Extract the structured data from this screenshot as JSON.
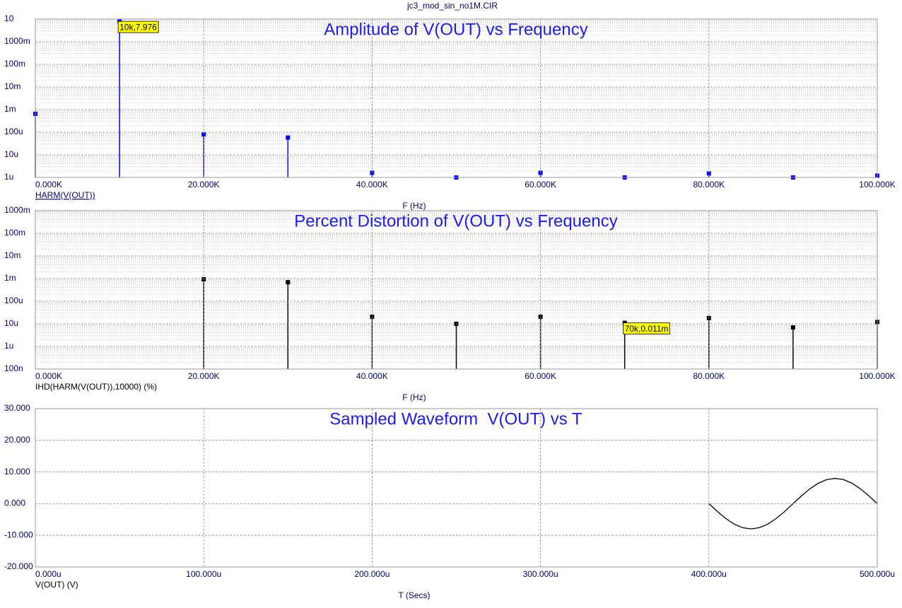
{
  "header": {
    "title": "jc3_mod_sin_no1M.CIR"
  },
  "chart_data": [
    {
      "type": "stem",
      "title": "Amplitude of V(OUT) vs Frequency",
      "x_label": "F (Hz)",
      "log_y": true,
      "grid": true,
      "xlim": [
        0,
        100000
      ],
      "xticks": [
        {
          "value": 0,
          "label": "0.000K"
        },
        {
          "value": 20000,
          "label": "20.000K"
        },
        {
          "value": 40000,
          "label": "40.000K"
        },
        {
          "value": 60000,
          "label": "60.000K"
        },
        {
          "value": 80000,
          "label": "80.000K"
        },
        {
          "value": 100000,
          "label": "100.000K"
        }
      ],
      "ylim": [
        1e-06,
        10
      ],
      "yticks": [
        10,
        {
          "value": 1,
          "label": "1000m"
        },
        {
          "value": 0.1,
          "label": "100m"
        },
        {
          "value": 0.01,
          "label": "10m"
        },
        {
          "value": 0.001,
          "label": "1m"
        },
        {
          "value": 0.0001,
          "label": "100u"
        },
        {
          "value": 1e-05,
          "label": "10u"
        },
        {
          "value": 1e-06,
          "label": "1u"
        }
      ],
      "annotation": "10k,7.976",
      "series": [
        {
          "name": "HARM(V(OUT))",
          "color": "#0000ff",
          "x": [
            0,
            10000,
            20000,
            30000,
            40000,
            50000,
            60000,
            70000,
            80000,
            90000,
            100000
          ],
          "values": [
            0.00065,
            7.976,
            8e-05,
            5.8e-05,
            1.6e-06,
            1e-06,
            1.6e-06,
            1e-06,
            1.5e-06,
            1e-06,
            1.2e-06
          ]
        }
      ]
    },
    {
      "type": "stem",
      "title": "Percent Distortion of V(OUT) vs Frequency",
      "x_label": "F (Hz)",
      "log_y": true,
      "grid": true,
      "xlim": [
        0,
        100000
      ],
      "xticks": [
        {
          "value": 0,
          "label": "0.000K"
        },
        {
          "value": 20000,
          "label": "20.000K"
        },
        {
          "value": 40000,
          "label": "40.000K"
        },
        {
          "value": 60000,
          "label": "60.000K"
        },
        {
          "value": 80000,
          "label": "80.000K"
        },
        {
          "value": 100000,
          "label": "100.000K"
        }
      ],
      "ylim": [
        1e-07,
        1
      ],
      "yticks": [
        {
          "value": 1,
          "label": "1000m"
        },
        {
          "value": 0.1,
          "label": "100m"
        },
        {
          "value": 0.01,
          "label": "10m"
        },
        {
          "value": 0.001,
          "label": "1m"
        },
        {
          "value": 0.0001,
          "label": "100u"
        },
        {
          "value": 1e-05,
          "label": "10u"
        },
        {
          "value": 1e-06,
          "label": "1u"
        },
        {
          "value": 1e-07,
          "label": "100n"
        }
      ],
      "annotation": "70k,0.011m",
      "series": [
        {
          "name": "IHD(HARM(V(OUT)),10000) (%)",
          "color": "#000000",
          "x": [
            20000,
            30000,
            40000,
            50000,
            60000,
            70000,
            80000,
            90000,
            100000
          ],
          "values": [
            0.00093,
            0.00069,
            2.05e-05,
            1e-05,
            2.05e-05,
            1.1e-05,
            1.8e-05,
            6.9e-06,
            1.2e-05
          ]
        }
      ]
    },
    {
      "type": "line",
      "title": "Sampled Waveform  V(OUT) vs T",
      "x_label": "T (Secs)",
      "log_y": false,
      "grid": true,
      "xlim": [
        0,
        0.0005
      ],
      "xticks": [
        {
          "value": 0,
          "label": "0.000u"
        },
        {
          "value": 0.0001,
          "label": "100.000u"
        },
        {
          "value": 0.0002,
          "label": "200.000u"
        },
        {
          "value": 0.0003,
          "label": "300.000u"
        },
        {
          "value": 0.0004,
          "label": "400.000u"
        },
        {
          "value": 0.0005,
          "label": "500.000u"
        }
      ],
      "ylim": [
        -20,
        30
      ],
      "yticks": [
        {
          "value": 30,
          "label": "30.000"
        },
        {
          "value": 20,
          "label": "20.000"
        },
        {
          "value": 10,
          "label": "10.000"
        },
        {
          "value": 0,
          "label": "0.000"
        },
        {
          "value": -10,
          "label": "-10.000"
        },
        {
          "value": -20,
          "label": "-20.000"
        }
      ],
      "series": [
        {
          "name": "V(OUT) (V)",
          "color": "#000000",
          "x": [
            0.0004,
            0.000405,
            0.00041,
            0.000415,
            0.00042,
            0.000425,
            0.00043,
            0.000435,
            0.00044,
            0.000445,
            0.00045,
            0.000455,
            0.00046,
            0.000465,
            0.00047,
            0.000475,
            0.00048,
            0.000485,
            0.00049,
            0.000495,
            0.0005
          ],
          "values": [
            0,
            -2.465,
            -4.688,
            -6.453,
            -7.586,
            -7.976,
            -7.586,
            -6.453,
            -4.688,
            -2.465,
            0,
            2.465,
            4.688,
            6.453,
            7.586,
            7.976,
            7.586,
            6.453,
            4.688,
            2.465,
            0
          ]
        }
      ]
    }
  ]
}
